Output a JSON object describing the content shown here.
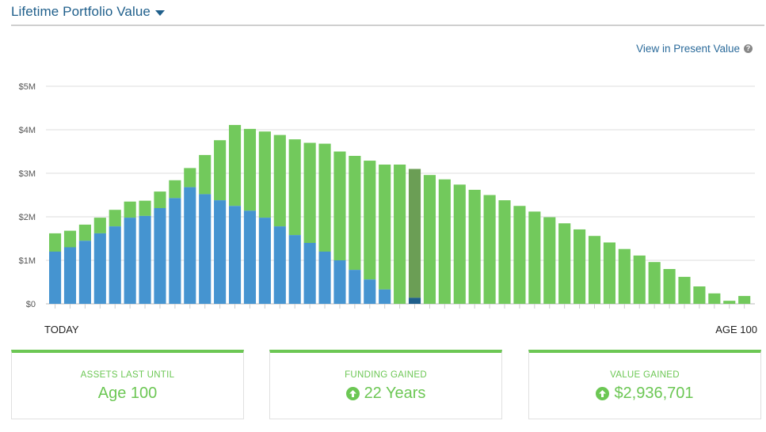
{
  "header": {
    "title": "Lifetime Portfolio Value"
  },
  "present_value_link": "View in Present Value",
  "x_axis": {
    "start_label": "TODAY",
    "end_label": "AGE 100"
  },
  "colors": {
    "gained": "#72c95c",
    "existing": "#4594d0",
    "highlight": "#6b9e55",
    "highlight_existing": "#1f5f8b",
    "accent": "#6cc754"
  },
  "cards": [
    {
      "label": "ASSETS LAST UNTIL",
      "value": "Age 100",
      "icon": ""
    },
    {
      "label": "FUNDING GAINED",
      "value": "22 Years",
      "icon": "up-arrow-circle-icon"
    },
    {
      "label": "VALUE GAINED",
      "value": "$2,936,701",
      "icon": "up-arrow-circle-icon"
    }
  ],
  "chart_data": {
    "type": "bar",
    "stacked": true,
    "title": "Lifetime Portfolio Value",
    "xlabel": "",
    "ylabel": "",
    "ylim": [
      0,
      5000000
    ],
    "yticks": [
      "$0",
      "$1M",
      "$2M",
      "$3M",
      "$4M",
      "$5M"
    ],
    "x_range_labels": [
      "TODAY",
      "AGE 100"
    ],
    "highlight_index": 24,
    "grid": true,
    "series": [
      {
        "name": "",
        "values": [
          1.2,
          1.3,
          1.45,
          1.62,
          1.78,
          1.98,
          2.02,
          2.2,
          2.43,
          2.68,
          2.52,
          2.38,
          2.25,
          2.14,
          1.98,
          1.78,
          1.58,
          1.4,
          1.2,
          1.0,
          0.78,
          0.56,
          0.33,
          0,
          0.14,
          0,
          0,
          0,
          0,
          0,
          0,
          0,
          0,
          0,
          0,
          0,
          0,
          0,
          0,
          0,
          0,
          0,
          0,
          0,
          0,
          0,
          0
        ]
      },
      {
        "name": "",
        "values": [
          0.42,
          0.38,
          0.37,
          0.36,
          0.38,
          0.37,
          0.35,
          0.38,
          0.41,
          0.44,
          0.9,
          1.38,
          1.86,
          1.88,
          1.98,
          2.1,
          2.2,
          2.3,
          2.48,
          2.5,
          2.62,
          2.73,
          2.87,
          3.2,
          2.96,
          2.96,
          2.86,
          2.74,
          2.62,
          2.5,
          2.38,
          2.25,
          2.12,
          1.99,
          1.85,
          1.71,
          1.56,
          1.41,
          1.26,
          1.11,
          0.96,
          0.8,
          0.62,
          0.4,
          0.24,
          0.07,
          0.18
        ]
      }
    ]
  }
}
